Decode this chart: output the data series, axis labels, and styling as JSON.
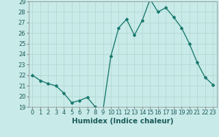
{
  "x": [
    0,
    1,
    2,
    3,
    4,
    5,
    6,
    7,
    8,
    9,
    10,
    11,
    12,
    13,
    14,
    15,
    16,
    17,
    18,
    19,
    20,
    21,
    22,
    23
  ],
  "y": [
    22,
    21.5,
    21.2,
    21.0,
    20.3,
    19.4,
    19.6,
    19.9,
    19.0,
    18.7,
    23.8,
    26.5,
    27.3,
    25.8,
    27.2,
    29.2,
    28.0,
    28.4,
    27.5,
    26.5,
    25.0,
    23.2,
    21.8,
    21.1
  ],
  "xlabel": "Humidex (Indice chaleur)",
  "ylim": [
    19,
    29
  ],
  "xlim": [
    -0.5,
    23.5
  ],
  "yticks": [
    19,
    20,
    21,
    22,
    23,
    24,
    25,
    26,
    27,
    28,
    29
  ],
  "xticks": [
    0,
    1,
    2,
    3,
    4,
    5,
    6,
    7,
    8,
    9,
    10,
    11,
    12,
    13,
    14,
    15,
    16,
    17,
    18,
    19,
    20,
    21,
    22,
    23
  ],
  "line_color": "#1a7a6e",
  "marker": "D",
  "markersize": 2.0,
  "linewidth": 1.0,
  "bg_color": "#c8eae8",
  "grid_color": "#b0d4d0",
  "tick_labelsize": 6.0,
  "xlabel_fontsize": 7.5
}
